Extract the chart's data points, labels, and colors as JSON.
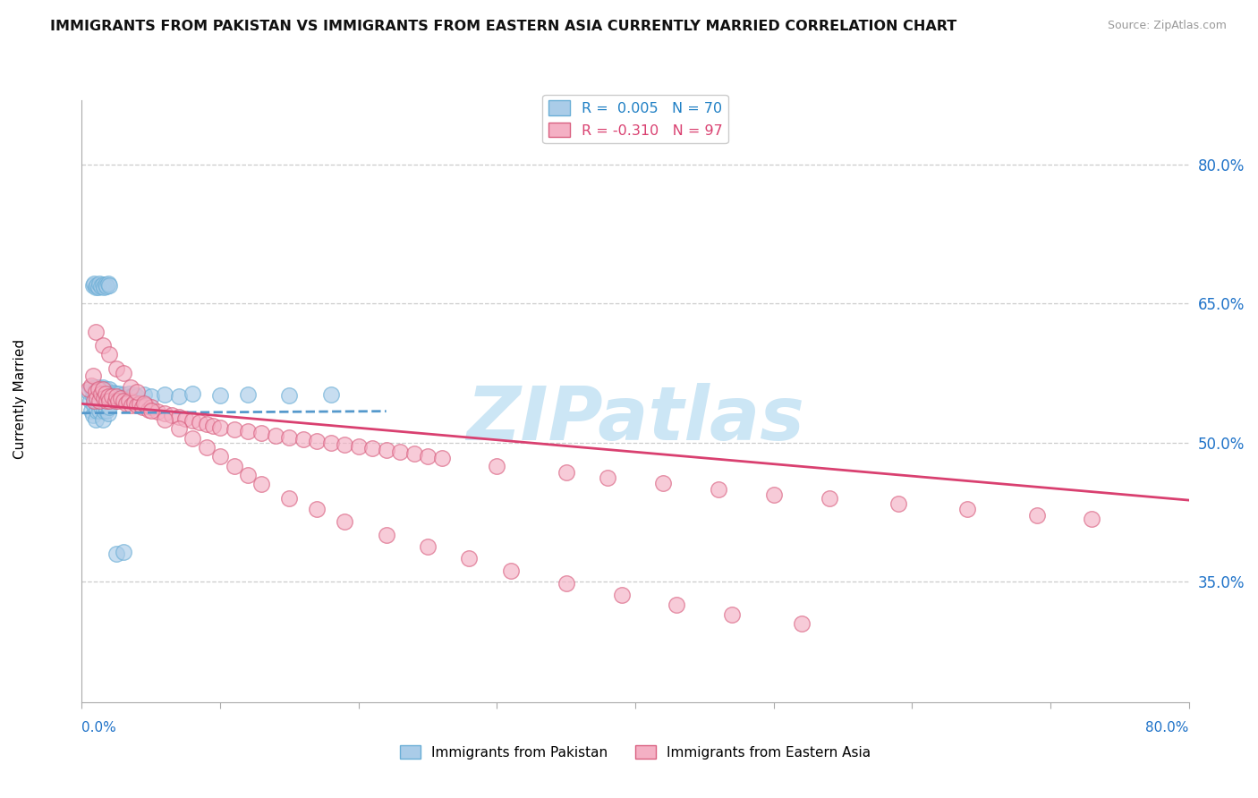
{
  "title": "IMMIGRANTS FROM PAKISTAN VS IMMIGRANTS FROM EASTERN ASIA CURRENTLY MARRIED CORRELATION CHART",
  "source": "Source: ZipAtlas.com",
  "ylabel": "Currently Married",
  "y_tick_values": [
    0.35,
    0.5,
    0.65,
    0.8
  ],
  "x_min": 0.0,
  "x_max": 0.8,
  "y_min": 0.22,
  "y_max": 0.87,
  "legend_top_entries": [
    {
      "label": "R =  0.005   N = 70",
      "color": "#1e7fc4"
    },
    {
      "label": "R = -0.310   N = 97",
      "color": "#d94070"
    }
  ],
  "legend_bottom_entries": [
    {
      "label": "Immigrants from Pakistan",
      "patch_face": "#aacce8",
      "patch_edge": "#6aaed6"
    },
    {
      "label": "Immigrants from Eastern Asia",
      "patch_face": "#f4b0c4",
      "patch_edge": "#d96080"
    }
  ],
  "pk_color": "#aacce8",
  "pk_edge": "#6aaed6",
  "ea_color": "#f4b0c4",
  "ea_edge": "#d96080",
  "trend_pak_color": "#5599cc",
  "trend_ea_color": "#d94070",
  "trend_pak_x0": 0.0,
  "trend_pak_x1": 0.22,
  "trend_pak_y0": 0.532,
  "trend_pak_y1": 0.534,
  "trend_ea_x0": 0.0,
  "trend_ea_x1": 0.8,
  "trend_ea_y0": 0.542,
  "trend_ea_y1": 0.438,
  "watermark": "ZIPatlas",
  "watermark_color": "#cce6f5",
  "background_color": "#ffffff",
  "grid_color": "#cccccc",
  "pk_x": [
    0.005,
    0.006,
    0.007,
    0.007,
    0.008,
    0.008,
    0.009,
    0.009,
    0.01,
    0.01,
    0.01,
    0.011,
    0.011,
    0.012,
    0.012,
    0.013,
    0.013,
    0.014,
    0.014,
    0.015,
    0.015,
    0.015,
    0.016,
    0.016,
    0.017,
    0.017,
    0.018,
    0.018,
    0.019,
    0.019,
    0.02,
    0.02,
    0.021,
    0.022,
    0.023,
    0.024,
    0.025,
    0.026,
    0.027,
    0.028,
    0.03,
    0.032,
    0.034,
    0.036,
    0.038,
    0.04,
    0.045,
    0.05,
    0.06,
    0.07,
    0.08,
    0.1,
    0.12,
    0.15,
    0.18,
    0.008,
    0.009,
    0.01,
    0.011,
    0.012,
    0.013,
    0.014,
    0.015,
    0.016,
    0.017,
    0.018,
    0.019,
    0.02,
    0.025,
    0.03
  ],
  "pk_y": [
    0.555,
    0.545,
    0.56,
    0.535,
    0.55,
    0.53,
    0.555,
    0.54,
    0.56,
    0.545,
    0.525,
    0.555,
    0.535,
    0.56,
    0.54,
    0.555,
    0.535,
    0.558,
    0.538,
    0.56,
    0.545,
    0.525,
    0.555,
    0.535,
    0.558,
    0.538,
    0.555,
    0.535,
    0.552,
    0.532,
    0.558,
    0.538,
    0.552,
    0.548,
    0.554,
    0.55,
    0.553,
    0.549,
    0.553,
    0.548,
    0.552,
    0.549,
    0.553,
    0.55,
    0.552,
    0.55,
    0.552,
    0.55,
    0.552,
    0.55,
    0.553,
    0.551,
    0.552,
    0.551,
    0.552,
    0.67,
    0.672,
    0.668,
    0.67,
    0.668,
    0.672,
    0.669,
    0.671,
    0.668,
    0.671,
    0.669,
    0.672,
    0.67,
    0.38,
    0.382
  ],
  "ea_x": [
    0.005,
    0.007,
    0.008,
    0.009,
    0.01,
    0.011,
    0.012,
    0.013,
    0.014,
    0.015,
    0.016,
    0.017,
    0.018,
    0.019,
    0.02,
    0.022,
    0.024,
    0.025,
    0.026,
    0.028,
    0.03,
    0.032,
    0.034,
    0.036,
    0.038,
    0.04,
    0.042,
    0.044,
    0.046,
    0.048,
    0.05,
    0.055,
    0.06,
    0.065,
    0.07,
    0.075,
    0.08,
    0.085,
    0.09,
    0.095,
    0.1,
    0.11,
    0.12,
    0.13,
    0.14,
    0.15,
    0.16,
    0.17,
    0.18,
    0.19,
    0.2,
    0.21,
    0.22,
    0.23,
    0.24,
    0.25,
    0.26,
    0.3,
    0.35,
    0.38,
    0.42,
    0.46,
    0.5,
    0.54,
    0.59,
    0.64,
    0.69,
    0.73,
    0.01,
    0.015,
    0.02,
    0.025,
    0.03,
    0.035,
    0.04,
    0.045,
    0.05,
    0.06,
    0.07,
    0.08,
    0.09,
    0.1,
    0.11,
    0.12,
    0.13,
    0.15,
    0.17,
    0.19,
    0.22,
    0.25,
    0.28,
    0.31,
    0.35,
    0.39,
    0.43,
    0.47,
    0.52
  ],
  "ea_y": [
    0.558,
    0.562,
    0.572,
    0.545,
    0.555,
    0.548,
    0.558,
    0.545,
    0.553,
    0.558,
    0.548,
    0.553,
    0.545,
    0.55,
    0.545,
    0.55,
    0.545,
    0.55,
    0.545,
    0.548,
    0.545,
    0.542,
    0.545,
    0.54,
    0.543,
    0.54,
    0.542,
    0.538,
    0.54,
    0.536,
    0.538,
    0.534,
    0.532,
    0.53,
    0.528,
    0.526,
    0.524,
    0.522,
    0.52,
    0.518,
    0.516,
    0.514,
    0.512,
    0.51,
    0.508,
    0.506,
    0.504,
    0.502,
    0.5,
    0.498,
    0.496,
    0.494,
    0.492,
    0.49,
    0.488,
    0.485,
    0.483,
    0.475,
    0.468,
    0.462,
    0.456,
    0.45,
    0.444,
    0.44,
    0.434,
    0.428,
    0.422,
    0.418,
    0.62,
    0.605,
    0.595,
    0.58,
    0.575,
    0.56,
    0.555,
    0.542,
    0.535,
    0.525,
    0.515,
    0.505,
    0.495,
    0.485,
    0.475,
    0.465,
    0.455,
    0.44,
    0.428,
    0.415,
    0.4,
    0.388,
    0.375,
    0.362,
    0.348,
    0.336,
    0.325,
    0.315,
    0.305
  ]
}
